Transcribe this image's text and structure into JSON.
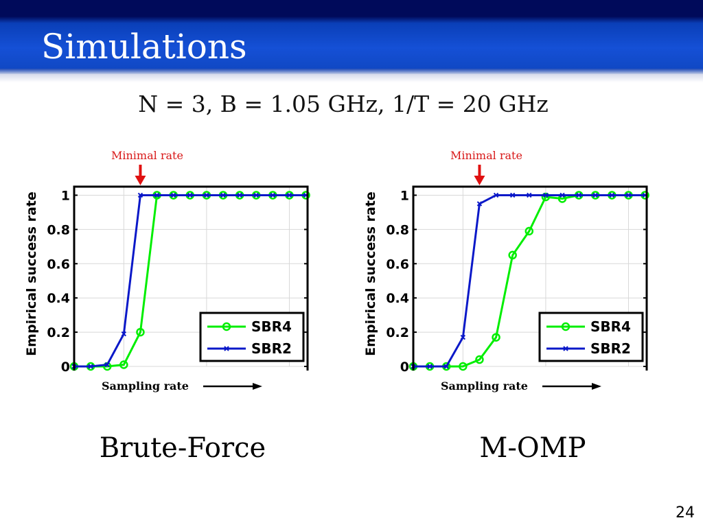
{
  "slide": {
    "title": "Simulations",
    "params": "N = 3, B = 1.05 GHz, 1/T = 20 GHz",
    "page_number": "24",
    "accent_color": "#1048c4"
  },
  "chart_data": [
    {
      "type": "line",
      "caption": "Brute-Force",
      "xlabel": "Sampling rate",
      "ylabel": "Empirical success rate",
      "annotation": "Minimal rate",
      "annotation_x": 6,
      "xlim": [
        2,
        16.1
      ],
      "ylim": [
        0,
        1.05
      ],
      "yticks": [
        "0",
        "0.2",
        "0.4",
        "0.6",
        "0.8",
        "1"
      ],
      "grid": true,
      "legend_position": "bottom-right",
      "x": [
        2,
        3,
        4,
        5,
        6,
        7,
        8,
        9,
        10,
        11,
        12,
        13,
        14,
        15,
        16
      ],
      "series": [
        {
          "name": "SBR4",
          "color": "#00ee00",
          "marker": "circle",
          "values": [
            0,
            0,
            0,
            0.01,
            0.2,
            1,
            1,
            1,
            1,
            1,
            1,
            1,
            1,
            1,
            1
          ]
        },
        {
          "name": "SBR2",
          "color": "#0a18c8",
          "marker": "x",
          "values": [
            0,
            0,
            0.01,
            0.19,
            1,
            1,
            1,
            1,
            1,
            1,
            1,
            1,
            1,
            1,
            1
          ]
        }
      ]
    },
    {
      "type": "line",
      "caption": "M-OMP",
      "xlabel": "Sampling rate",
      "ylabel": "Empirical success rate",
      "annotation": "Minimal rate",
      "annotation_x": 6,
      "xlim": [
        2,
        16.1
      ],
      "ylim": [
        0,
        1.05
      ],
      "yticks": [
        "0",
        "0.2",
        "0.4",
        "0.6",
        "0.8",
        "1"
      ],
      "grid": true,
      "legend_position": "bottom-right",
      "x": [
        2,
        3,
        4,
        5,
        6,
        7,
        8,
        9,
        10,
        11,
        12,
        13,
        14,
        15,
        16
      ],
      "series": [
        {
          "name": "SBR4",
          "color": "#00ee00",
          "marker": "circle",
          "values": [
            0,
            0,
            0,
            0,
            0.04,
            0.17,
            0.65,
            0.79,
            0.99,
            0.98,
            1,
            1,
            1,
            1,
            1
          ]
        },
        {
          "name": "SBR2",
          "color": "#0a18c8",
          "marker": "x",
          "values": [
            0,
            0,
            0,
            0.17,
            0.95,
            1,
            1,
            1,
            1,
            1,
            1,
            1,
            1,
            1,
            1
          ]
        }
      ]
    }
  ]
}
